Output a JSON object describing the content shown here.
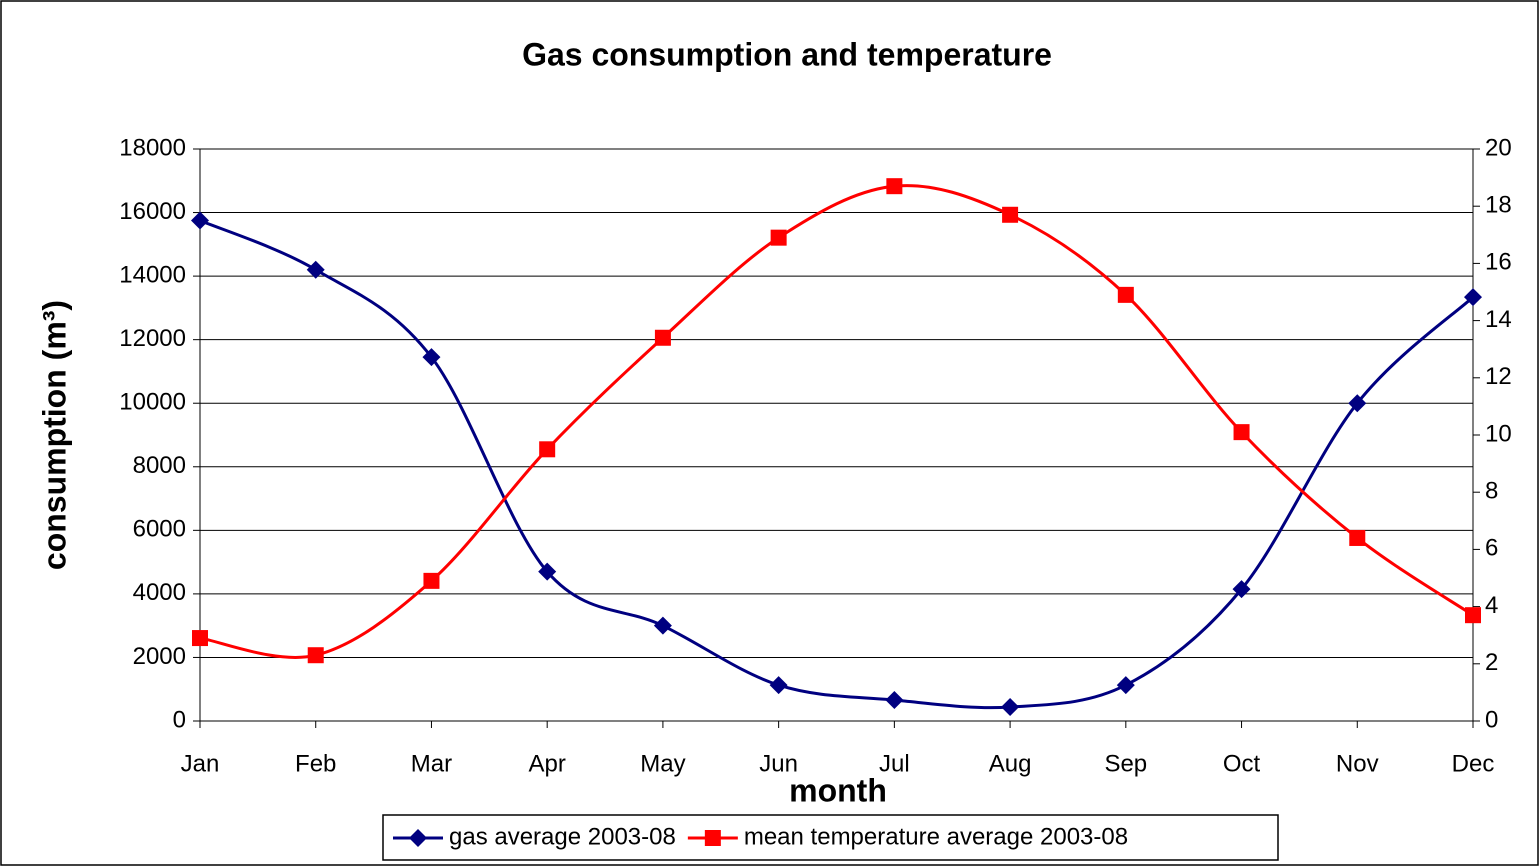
{
  "chart_data": {
    "type": "line",
    "title": "Gas consumption and temperature",
    "x_label": "month",
    "y_label": "consumption (m³)",
    "categories": [
      "Jan",
      "Feb",
      "Mar",
      "Apr",
      "May",
      "Jun",
      "Jul",
      "Aug",
      "Sep",
      "Oct",
      "Nov",
      "Dec"
    ],
    "series": [
      {
        "name": "gas average 2003-08",
        "color": "#000080",
        "marker": "diamond",
        "axis": "y",
        "values": [
          15750,
          14200,
          11450,
          4700,
          3000,
          1130,
          660,
          440,
          1130,
          4150,
          10000,
          13340
        ]
      },
      {
        "name": "mean temperature average 2003-08",
        "color": "#ff0000",
        "marker": "square",
        "axis": "y2",
        "values": [
          2.9,
          2.3,
          4.9,
          9.5,
          13.4,
          16.9,
          18.7,
          17.7,
          14.9,
          10.1,
          6.4,
          3.7
        ]
      }
    ],
    "ylim": [
      0,
      18000
    ],
    "yticks": [
      0,
      2000,
      4000,
      6000,
      8000,
      10000,
      12000,
      14000,
      16000,
      18000
    ],
    "y2lim": [
      0,
      20
    ],
    "y2ticks": [
      0,
      2,
      4,
      6,
      8,
      10,
      12,
      14,
      16,
      18,
      20
    ],
    "grid": true,
    "smooth": true,
    "legend": "bottom"
  }
}
